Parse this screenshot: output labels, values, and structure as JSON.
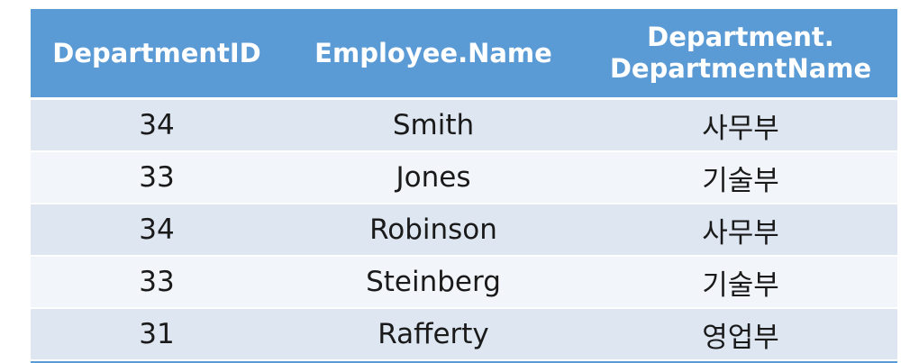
{
  "table": {
    "headers": [
      "DepartmentID",
      "Employee.Name",
      "Department.\nDepartmentName"
    ],
    "header_lines": {
      "col3_line1": "Department.",
      "col3_line2": "DepartmentName"
    },
    "rows": [
      [
        "34",
        "Smith",
        "사무부"
      ],
      [
        "33",
        "Jones",
        "기술부"
      ],
      [
        "34",
        "Robinson",
        "사무부"
      ],
      [
        "33",
        "Steinberg",
        "기술부"
      ],
      [
        "31",
        "Rafferty",
        "영업부"
      ]
    ]
  },
  "colors": {
    "header_bg": "#5b9bd5",
    "row_odd_bg": "#dde6f1",
    "row_even_bg": "#f2f5fa"
  }
}
